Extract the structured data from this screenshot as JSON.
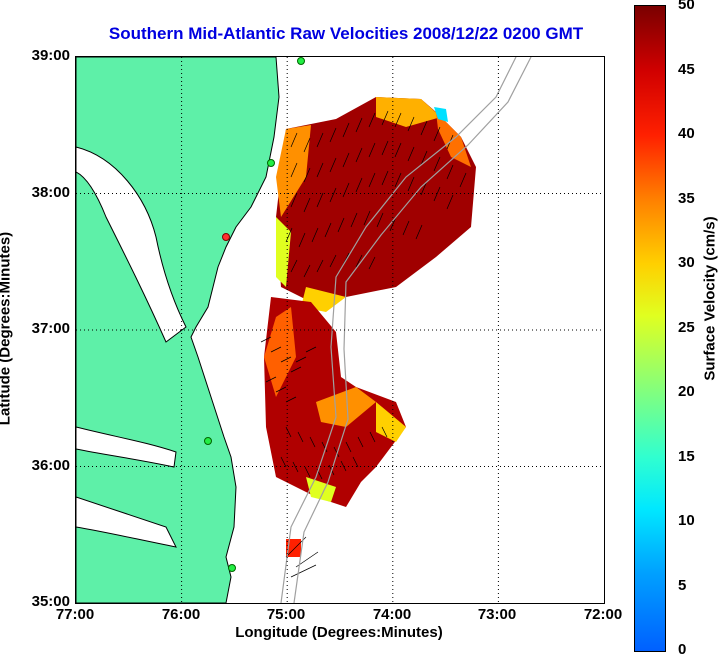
{
  "title": "Southern Mid-Atlantic Raw Velocities 2008/12/22 0200 GMT",
  "xlabel": "Longitude (Degrees:Minutes)",
  "ylabel": "Latitude (Degrees:Minutes)",
  "colorbar_label": "Surface Velocity (cm/s)",
  "x_ticks": [
    "77:00",
    "76:00",
    "75:00",
    "74:00",
    "73:00",
    "72:00"
  ],
  "y_ticks": [
    "39:00",
    "38:00",
    "37:00",
    "36:00",
    "35:00"
  ],
  "colorbar_ticks": [
    "50",
    "45",
    "40",
    "35",
    "30",
    "25",
    "20",
    "15",
    "10",
    "5",
    "0"
  ],
  "colors": {
    "land": "#5ef0a8",
    "title": "#0000e0",
    "coast": "#000000",
    "bathymetry": "#a0a0a0"
  },
  "map": {
    "lon_range": [
      -77,
      -72
    ],
    "lat_range": [
      35,
      39
    ],
    "velocity_range_cms": [
      0,
      50
    ],
    "grid": "dotted"
  }
}
